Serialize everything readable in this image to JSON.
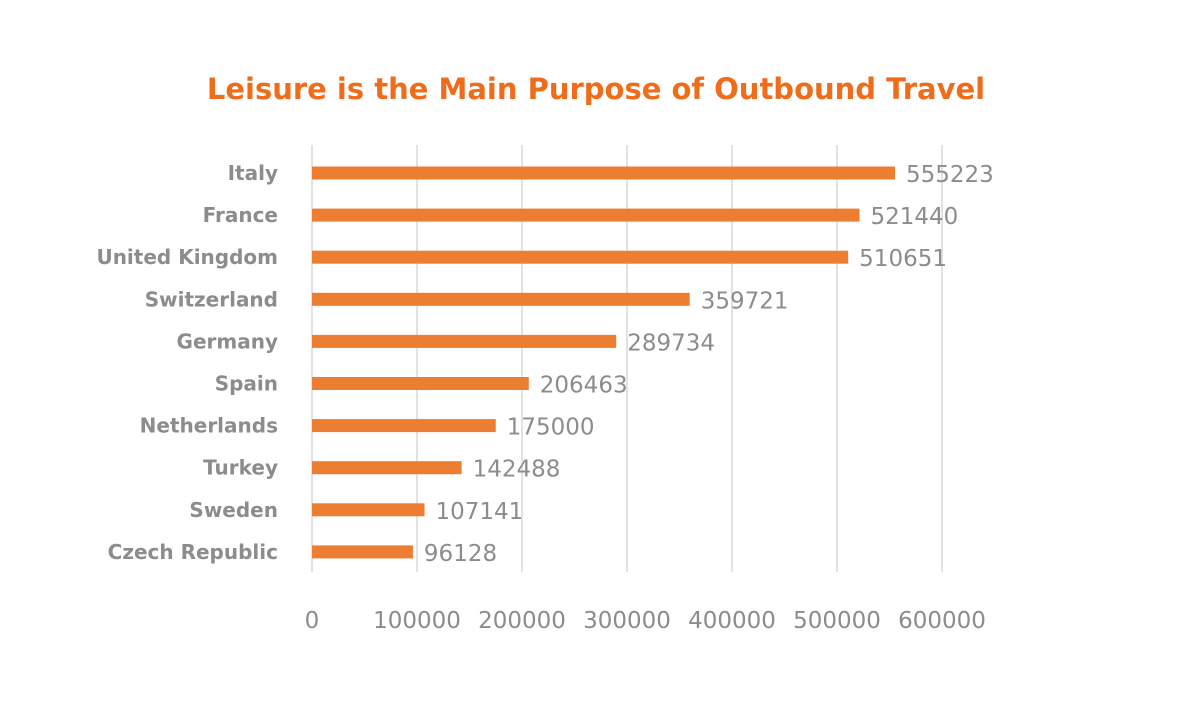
{
  "chart_data": {
    "type": "bar",
    "orientation": "horizontal",
    "title": "Leisure is the Main Purpose of Outbound Travel",
    "categories": [
      "Italy",
      "France",
      "United Kingdom",
      "Switzerland",
      "Germany",
      "Spain",
      "Netherlands",
      "Turkey",
      "Sweden",
      "Czech Republic"
    ],
    "values": [
      555223,
      521440,
      510651,
      359721,
      289734,
      206463,
      175000,
      142488,
      107141,
      96128
    ],
    "data_labels": [
      "555223",
      "521440",
      "510651",
      "359721",
      "289734",
      "206463",
      "175000",
      "142488",
      "107141",
      "96128"
    ],
    "xlim": [
      0,
      600000
    ],
    "x_ticks": [
      "0",
      "100000",
      "200000",
      "300000",
      "400000",
      "500000",
      "600000"
    ],
    "xlabel": "",
    "ylabel": "",
    "grid": "vertical",
    "legend": "none",
    "colors": {
      "bar": "#ed7d31",
      "title": "#ef6c1a",
      "text": "#8c8c8c",
      "grid": "#d9d9d9"
    }
  }
}
